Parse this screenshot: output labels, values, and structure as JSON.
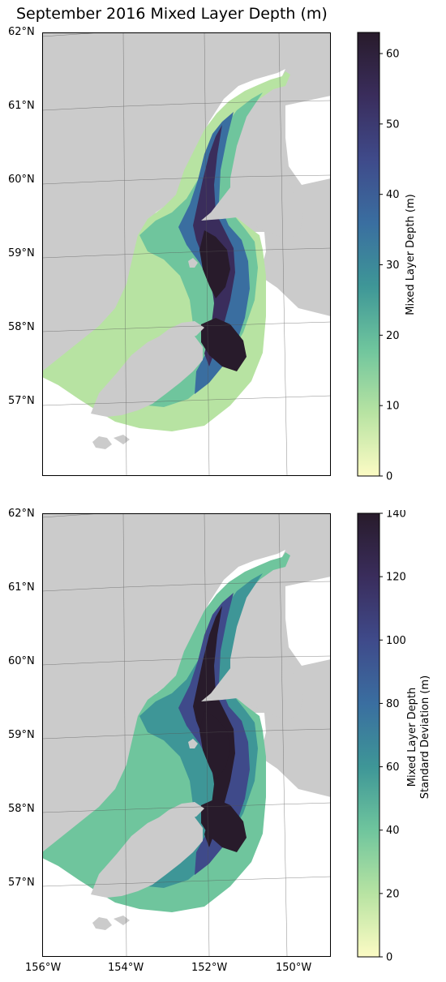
{
  "title": "September 2016 Mixed Layer Depth (m)",
  "lat_labels": [
    "62°N",
    "61°N",
    "60°N",
    "59°N",
    "58°N",
    "57°N"
  ],
  "lon_labels": [
    "156°W",
    "154°W",
    "152°W",
    "150°W"
  ],
  "colors": {
    "land": "#cbcbcb",
    "cmap": [
      "#fcfbc4",
      "#b7e3a2",
      "#6fc59d",
      "#3e9697",
      "#3a6ea0",
      "#3f4a8a",
      "#3a2d5c",
      "#281b2b"
    ]
  },
  "panels": [
    {
      "cbar_label": "Mixed Layer Depth (m)",
      "cbar_ticks": [
        "0",
        "10",
        "20",
        "30",
        "40",
        "50",
        "60"
      ],
      "cbar_range": [
        0,
        63
      ]
    },
    {
      "cbar_label": "Mixed Layer Depth\nStandard Deviation (m)",
      "cbar_ticks": [
        "0",
        "20",
        "40",
        "60",
        "80",
        "100",
        "120",
        "140"
      ],
      "cbar_range": [
        0,
        140
      ]
    }
  ]
}
